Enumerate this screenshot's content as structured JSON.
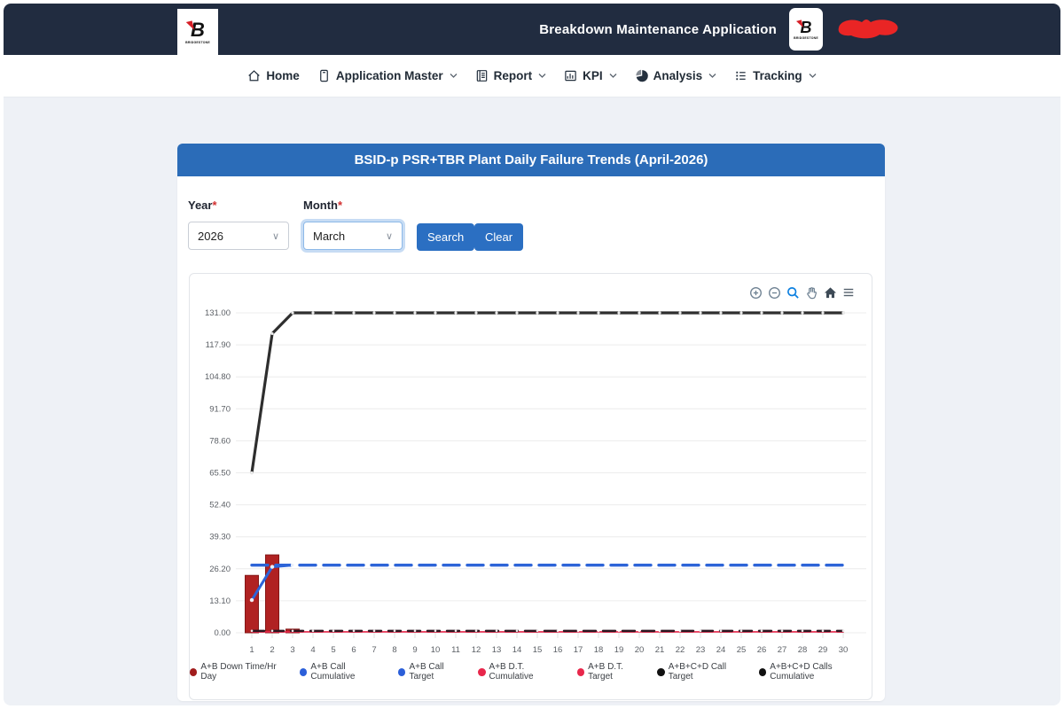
{
  "header": {
    "app_title": "Breakdown Maintenance Application",
    "brand_letter": "B",
    "brand_caption": "BRIDGESTONE"
  },
  "nav": {
    "items": [
      {
        "label": "Home",
        "icon": "home-icon",
        "has_dropdown": false
      },
      {
        "label": "Application Master",
        "icon": "application-master-icon",
        "has_dropdown": true
      },
      {
        "label": "Report",
        "icon": "report-icon",
        "has_dropdown": true
      },
      {
        "label": "KPI",
        "icon": "kpi-icon",
        "has_dropdown": true
      },
      {
        "label": "Analysis",
        "icon": "analysis-icon",
        "has_dropdown": true
      },
      {
        "label": "Tracking",
        "icon": "tracking-icon",
        "has_dropdown": true
      }
    ]
  },
  "panel": {
    "title": "BSID-p PSR+TBR Plant Daily Failure Trends (April-2026)"
  },
  "filters": {
    "year_label": "Year",
    "month_label": "Month",
    "required_mark": "*",
    "year_value": "2026",
    "month_value": "March",
    "search_label": "Search",
    "clear_label": "Clear"
  },
  "toolbar_icons": [
    "zoom-in-icon",
    "zoom-out-icon",
    "selection-zoom-icon",
    "pan-icon",
    "home-reset-icon",
    "menu-icon"
  ],
  "chart_data": {
    "type": "mixed bar + line",
    "title": "",
    "xlabel": "",
    "ylabel": "",
    "x": [
      1,
      2,
      3,
      4,
      5,
      6,
      7,
      8,
      9,
      10,
      11,
      12,
      13,
      14,
      15,
      16,
      17,
      18,
      19,
      20,
      21,
      22,
      23,
      24,
      25,
      26,
      27,
      28,
      29,
      30
    ],
    "ylim": [
      0,
      131
    ],
    "y_ticks": [
      "131.00",
      "117.90",
      "104.80",
      "91.70",
      "78.60",
      "65.50",
      "52.40",
      "39.30",
      "26.20",
      "13.10",
      "0.00"
    ],
    "grid": true,
    "legend_position": "bottom",
    "series": [
      {
        "name": "A+B Down Time/Hr Day",
        "type": "bar",
        "color": "#b02222",
        "values": [
          23.5,
          31.9,
          1.5,
          0,
          0,
          0,
          0,
          0,
          0,
          0,
          0,
          0,
          0,
          0,
          0,
          0,
          0,
          0,
          0,
          0,
          0,
          0,
          0,
          0,
          0,
          0,
          0,
          0,
          0,
          0
        ]
      },
      {
        "name": "A+B D.T. Cumulative",
        "type": "line",
        "color": "#e8274b",
        "width": 1.6,
        "values": [
          0.4,
          0.4,
          0.4,
          0.4,
          0.4,
          0.4,
          0.4,
          0.4,
          0.4,
          0.4,
          0.4,
          0.4,
          0.4,
          0.4,
          0.4,
          0.4,
          0.4,
          0.4,
          0.4,
          0.4,
          0.4,
          0.4,
          0.4,
          0.4,
          0.4,
          0.4,
          0.4,
          0.4,
          0.4,
          0.4
        ]
      },
      {
        "name": "A+B D.T. Target",
        "type": "line",
        "dash": "14 8",
        "color": "#c81f3e",
        "width": 1.8,
        "values": [
          0.4,
          0.4,
          0.4,
          0.4,
          0.4,
          0.4,
          0.4,
          0.4,
          0.4,
          0.4,
          0.4,
          0.4,
          0.4,
          0.4,
          0.4,
          0.4,
          0.4,
          0.4,
          0.4,
          0.4,
          0.4,
          0.4,
          0.4,
          0.4,
          0.4,
          0.4,
          0.4,
          0.4,
          0.4,
          0.4
        ]
      },
      {
        "name": "A+B+C+D Call Target",
        "type": "line",
        "dash": "14 8",
        "color": "#2a1620",
        "width": 2.4,
        "markers": true,
        "marker_r": 1.3,
        "values": [
          0.8,
          0.8,
          0.8,
          0.8,
          0.8,
          0.8,
          0.8,
          0.8,
          0.8,
          0.8,
          0.8,
          0.8,
          0.8,
          0.8,
          0.8,
          0.8,
          0.8,
          0.8,
          0.8,
          0.8,
          0.8,
          0.8,
          0.8,
          0.8,
          0.8,
          0.8,
          0.8,
          0.8,
          0.8,
          0.8
        ]
      },
      {
        "name": "A+B Call Target",
        "type": "line",
        "dash": "18 9",
        "color": "#2d64d8",
        "width": 3.4,
        "values": [
          27.7,
          27.7,
          27.7,
          27.7,
          27.7,
          27.7,
          27.7,
          27.7,
          27.7,
          27.7,
          27.7,
          27.7,
          27.7,
          27.7,
          27.7,
          27.7,
          27.7,
          27.7,
          27.7,
          27.7,
          27.7,
          27.7,
          27.7,
          27.7,
          27.7,
          27.7,
          27.7,
          27.7,
          27.7,
          27.7
        ]
      },
      {
        "name": "A+B Call Cumulative",
        "type": "line",
        "color": "#2d64d8",
        "width": 3,
        "markers": true,
        "marker_r": 2.2,
        "values": [
          13.4,
          27.0,
          27.7,
          null,
          null,
          null,
          null,
          null,
          null,
          null,
          null,
          null,
          null,
          null,
          null,
          null,
          null,
          null,
          null,
          null,
          null,
          null,
          null,
          null,
          null,
          null,
          null,
          null,
          null,
          null
        ]
      },
      {
        "name": "A+B+C+D Calls Cumulative",
        "type": "line",
        "color": "#2e2e2e",
        "width": 3.2,
        "markers": true,
        "marker_r": 1.6,
        "values": [
          65.5,
          122.5,
          131,
          131,
          131,
          131,
          131,
          131,
          131,
          131,
          131,
          131,
          131,
          131,
          131,
          131,
          131,
          131,
          131,
          131,
          131,
          131,
          131,
          131,
          131,
          131,
          131,
          131,
          131,
          131
        ]
      }
    ],
    "legend": [
      {
        "name": "A+B Down Time/Hr Day",
        "color": "#a11c1c"
      },
      {
        "name": "A+B Call Cumulative",
        "color": "#2b5fd9"
      },
      {
        "name": "A+B Call Target",
        "color": "#2b5fd9"
      },
      {
        "name": "A+B D.T. Cumulative",
        "color": "#e8274b"
      },
      {
        "name": "A+B D.T. Target",
        "color": "#e8274b"
      },
      {
        "name": "A+B+C+D Call Target",
        "color": "#111111"
      },
      {
        "name": "A+B+C+D Calls Cumulative",
        "color": "#111111"
      }
    ]
  }
}
